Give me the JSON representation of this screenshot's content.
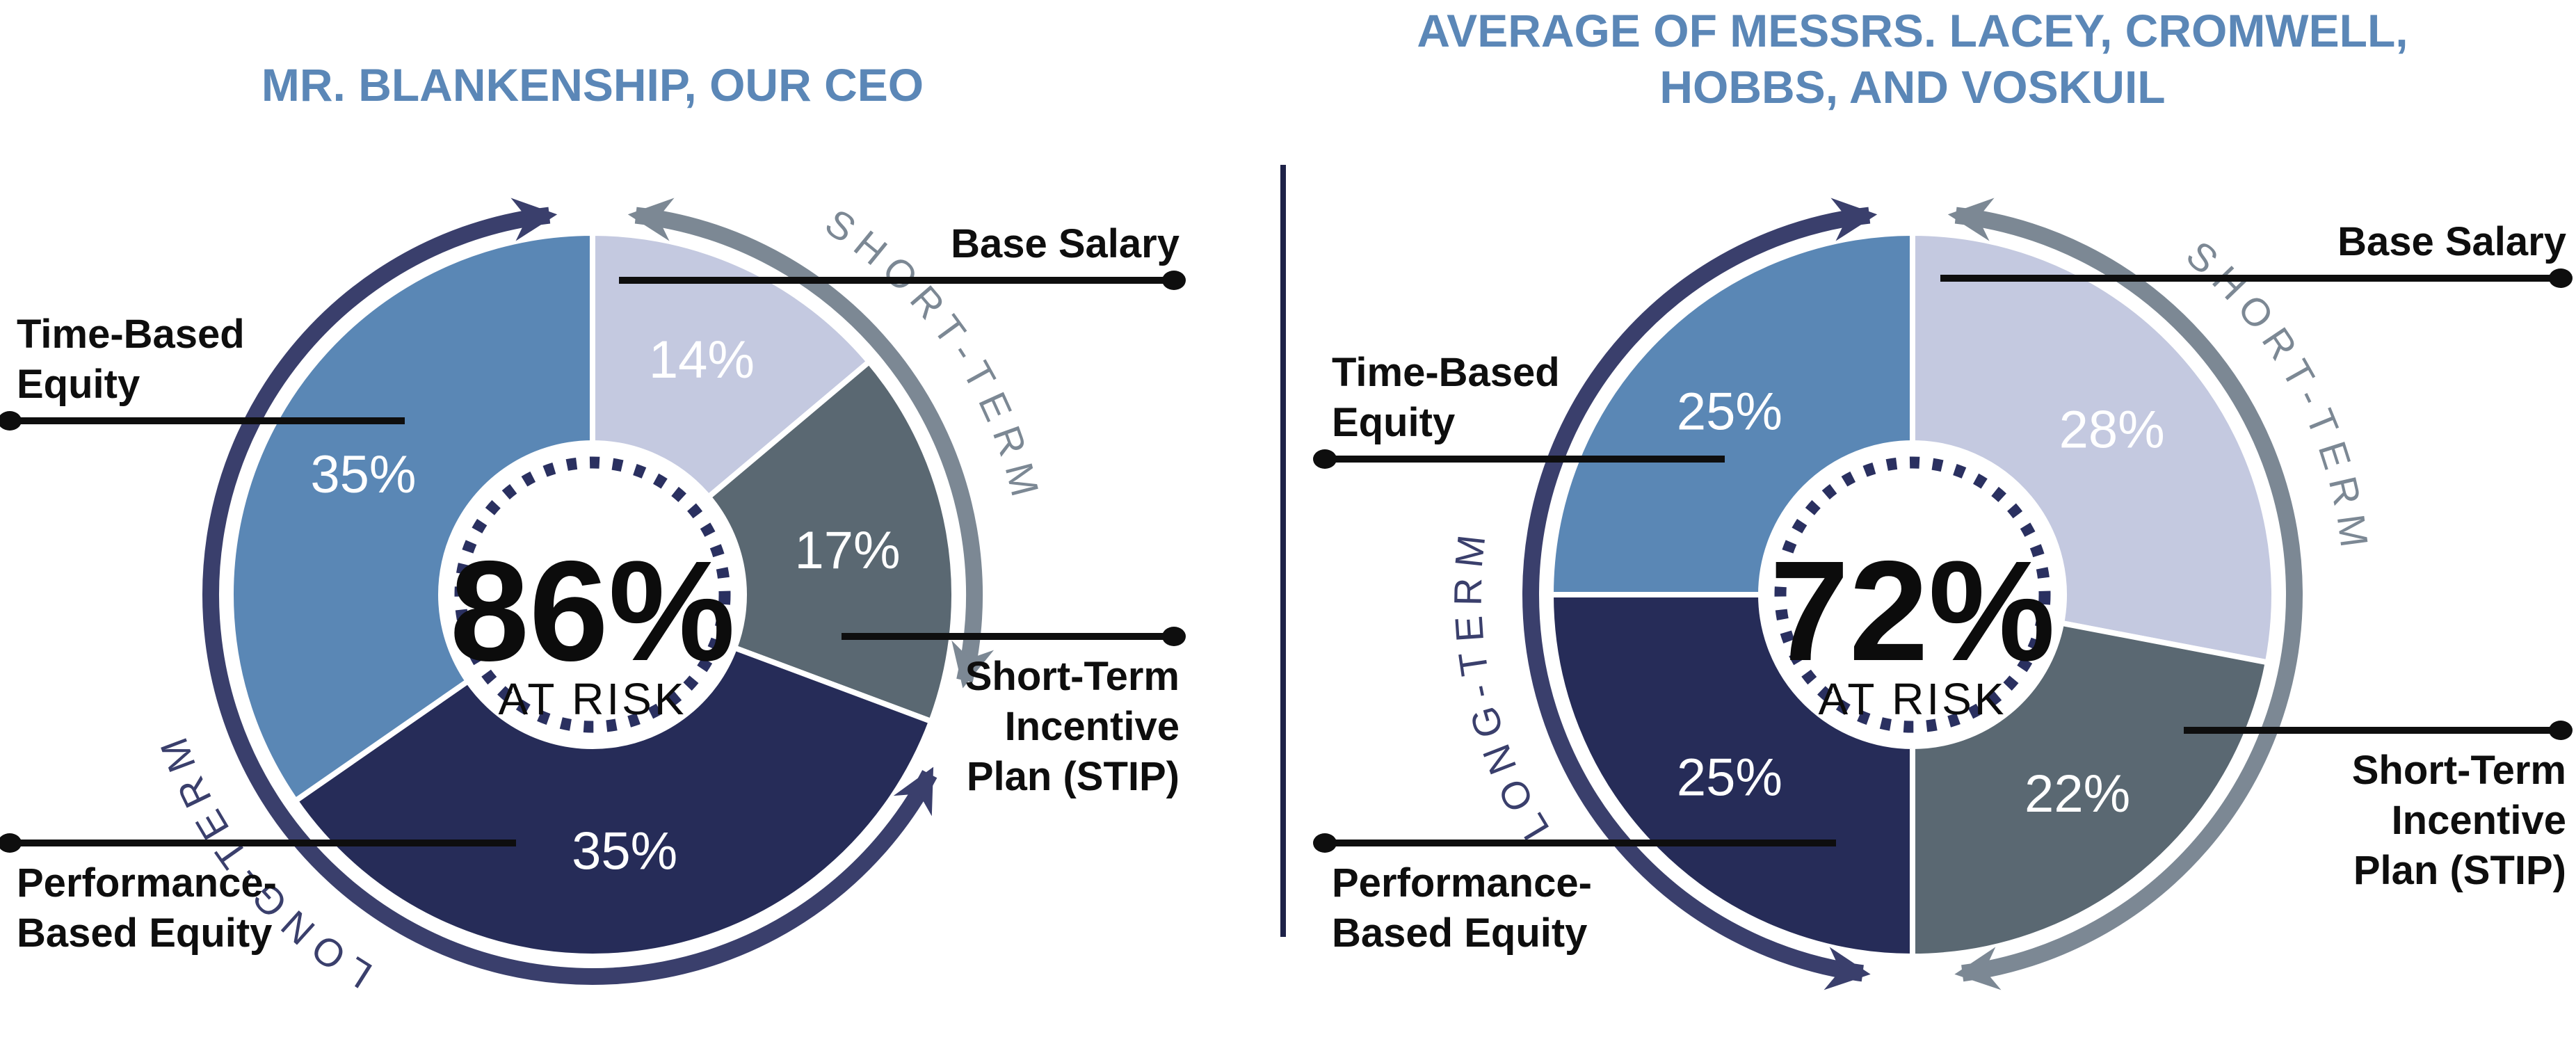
{
  "page": {
    "background": "#ffffff"
  },
  "palette": {
    "segment_colors": [
      "#c4c9e0",
      "#5a6872",
      "#262c58",
      "#5a87b5"
    ],
    "short_arc": "#7c8894",
    "long_arc": "#3a3f6c",
    "dotted_ring": "#2a3060",
    "title": "#5b87b7",
    "label_text": "#0e0e0e",
    "divider": "#1e2248",
    "pct_text": "#ffffff",
    "center_text": "#0c0c0c",
    "leader_line": "#0e0e0e"
  },
  "chart_data": [
    {
      "type": "pie",
      "title": "MR. BLANKENSHIP, OUR CEO",
      "center_value": "86%",
      "center_caption": "AT RISK",
      "categories": [
        "Base Salary",
        "Short-Term Incentive Plan (STIP)",
        "Performance-Based Equity",
        "Time-Based Equity"
      ],
      "values": [
        14,
        17,
        35,
        35
      ],
      "value_labels": [
        "14%",
        "17%",
        "35%",
        "35%"
      ],
      "callout_labels": [
        "Base Salary",
        "Short-Term\nIncentive\nPlan (STIP)",
        "Performance-\nBased Equity",
        "Time-Based\nEquity"
      ],
      "group_arcs": [
        {
          "label": "SHORT-TERM",
          "covers": [
            "Base Salary",
            "Short-Term Incentive Plan (STIP)"
          ]
        },
        {
          "label": "LONG-TERM",
          "covers": [
            "Performance-Based Equity",
            "Time-Based Equity"
          ]
        }
      ],
      "legend_position": "callouts",
      "grid": false
    },
    {
      "type": "pie",
      "title": "AVERAGE OF MESSRS. LACEY, CROMWELL,\nHOBBS, AND VOSKUIL",
      "center_value": "72%",
      "center_caption": "AT RISK",
      "categories": [
        "Base Salary",
        "Short-Term Incentive Plan (STIP)",
        "Performance-Based Equity",
        "Time-Based Equity"
      ],
      "values": [
        28,
        22,
        25,
        25
      ],
      "value_labels": [
        "28%",
        "22%",
        "25%",
        "25%"
      ],
      "callout_labels": [
        "Base Salary",
        "Short-Term\nIncentive\nPlan (STIP)",
        "Performance-\nBased Equity",
        "Time-Based\nEquity"
      ],
      "group_arcs": [
        {
          "label": "SHORT-TERM",
          "covers": [
            "Base Salary",
            "Short-Term Incentive Plan (STIP)"
          ]
        },
        {
          "label": "LONG-TERM",
          "covers": [
            "Performance-Based Equity",
            "Time-Based Equity"
          ]
        }
      ],
      "legend_position": "callouts",
      "grid": false
    }
  ]
}
